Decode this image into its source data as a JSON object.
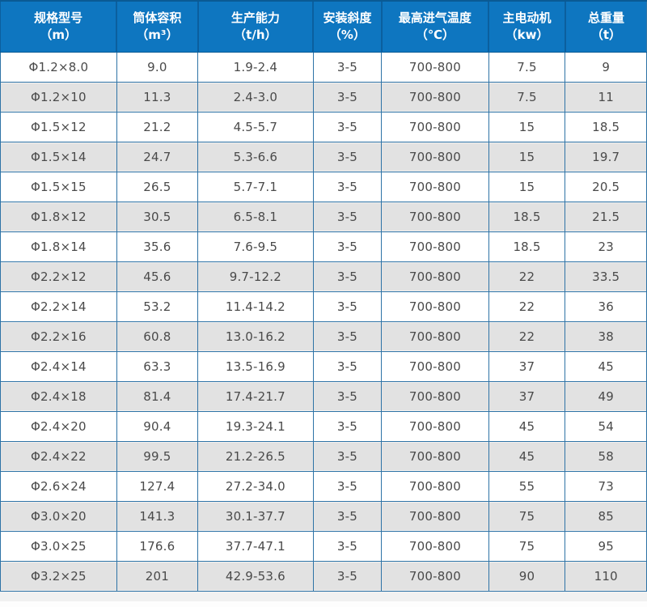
{
  "chart_data": {
    "type": "table",
    "title": "",
    "columns": [
      {
        "title": "规格型号",
        "unit": "（m）"
      },
      {
        "title": "筒体容积",
        "unit": "（m³）"
      },
      {
        "title": "生产能力",
        "unit": "（t/h）"
      },
      {
        "title": "安装斜度",
        "unit": "（%）"
      },
      {
        "title": "最高进气温度",
        "unit": "（℃）"
      },
      {
        "title": "主电动机",
        "unit": "（kw）"
      },
      {
        "title": "总重量",
        "unit": "（t）"
      }
    ],
    "rows": [
      [
        "Φ1.2×8.0",
        "9.0",
        "1.9-2.4",
        "3-5",
        "700-800",
        "7.5",
        "9"
      ],
      [
        "Φ1.2×10",
        "11.3",
        "2.4-3.0",
        "3-5",
        "700-800",
        "7.5",
        "11"
      ],
      [
        "Φ1.5×12",
        "21.2",
        "4.5-5.7",
        "3-5",
        "700-800",
        "15",
        "18.5"
      ],
      [
        "Φ1.5×14",
        "24.7",
        "5.3-6.6",
        "3-5",
        "700-800",
        "15",
        "19.7"
      ],
      [
        "Φ1.5×15",
        "26.5",
        "5.7-7.1",
        "3-5",
        "700-800",
        "15",
        "20.5"
      ],
      [
        "Φ1.8×12",
        "30.5",
        "6.5-8.1",
        "3-5",
        "700-800",
        "18.5",
        "21.5"
      ],
      [
        "Φ1.8×14",
        "35.6",
        "7.6-9.5",
        "3-5",
        "700-800",
        "18.5",
        "23"
      ],
      [
        "Φ2.2×12",
        "45.6",
        "9.7-12.2",
        "3-5",
        "700-800",
        "22",
        "33.5"
      ],
      [
        "Φ2.2×14",
        "53.2",
        "11.4-14.2",
        "3-5",
        "700-800",
        "22",
        "36"
      ],
      [
        "Φ2.2×16",
        "60.8",
        "13.0-16.2",
        "3-5",
        "700-800",
        "22",
        "38"
      ],
      [
        "Φ2.4×14",
        "63.3",
        "13.5-16.9",
        "3-5",
        "700-800",
        "37",
        "45"
      ],
      [
        "Φ2.4×18",
        "81.4",
        "17.4-21.7",
        "3-5",
        "700-800",
        "37",
        "49"
      ],
      [
        "Φ2.4×20",
        "90.4",
        "19.3-24.1",
        "3-5",
        "700-800",
        "45",
        "54"
      ],
      [
        "Φ2.4×22",
        "99.5",
        "21.2-26.5",
        "3-5",
        "700-800",
        "45",
        "58"
      ],
      [
        "Φ2.6×24",
        "127.4",
        "27.2-34.0",
        "3-5",
        "700-800",
        "55",
        "73"
      ],
      [
        "Φ3.0×20",
        "141.3",
        "30.1-37.7",
        "3-5",
        "700-800",
        "75",
        "85"
      ],
      [
        "Φ3.0×25",
        "176.6",
        "37.7-47.1",
        "3-5",
        "700-800",
        "75",
        "95"
      ],
      [
        "Φ3.2×25",
        "201",
        "42.9-53.6",
        "3-5",
        "700-800",
        "90",
        "110"
      ]
    ],
    "layout": {
      "column_widths_pct": [
        18.1,
        12.5,
        17.9,
        10.5,
        16.6,
        11.8,
        12.6
      ],
      "stripe_pattern": "alternating starting white",
      "grid": "on"
    },
    "colors": {
      "header_bg": "#0e76c0",
      "header_text": "#ffffff",
      "header_divider": "#0b5f9e",
      "header_top_border": "#0a5a94",
      "grid_border": "#2e73a6",
      "stripe_row_bg": "#e2e2e2",
      "white_row_bg": "#ffffff",
      "cell_text": "#4a4a4a",
      "footer_strip": "#f1f1f1"
    }
  }
}
